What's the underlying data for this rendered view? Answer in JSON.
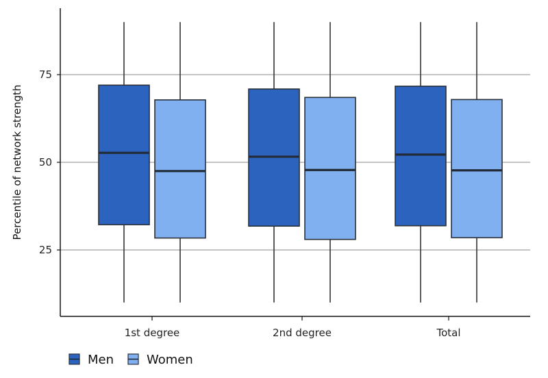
{
  "chart_data": {
    "type": "boxplot",
    "title": "",
    "xlabel": "",
    "ylabel": "Percentile of network strength",
    "ylim": [
      0,
      100
    ],
    "yticks": [
      25,
      50,
      75
    ],
    "grid": "horizontal",
    "legend_position": "bottom-left",
    "categories": [
      "1st degree",
      "2nd degree",
      "Total"
    ],
    "series": [
      {
        "name": "Men",
        "color": "#2b63be",
        "boxes": [
          {
            "min": 10,
            "q1": 32.2,
            "median": 52.7,
            "q3": 72.0,
            "max": 90
          },
          {
            "min": 10,
            "q1": 31.8,
            "median": 51.6,
            "q3": 70.9,
            "max": 90
          },
          {
            "min": 10,
            "q1": 31.9,
            "median": 52.2,
            "q3": 71.7,
            "max": 90
          }
        ]
      },
      {
        "name": "Women",
        "color": "#80b0f0",
        "boxes": [
          {
            "min": 10,
            "q1": 28.4,
            "median": 47.5,
            "q3": 67.8,
            "max": 90
          },
          {
            "min": 10,
            "q1": 28.0,
            "median": 47.8,
            "q3": 68.5,
            "max": 90
          },
          {
            "min": 10,
            "q1": 28.5,
            "median": 47.7,
            "q3": 67.9,
            "max": 90
          }
        ]
      }
    ]
  }
}
